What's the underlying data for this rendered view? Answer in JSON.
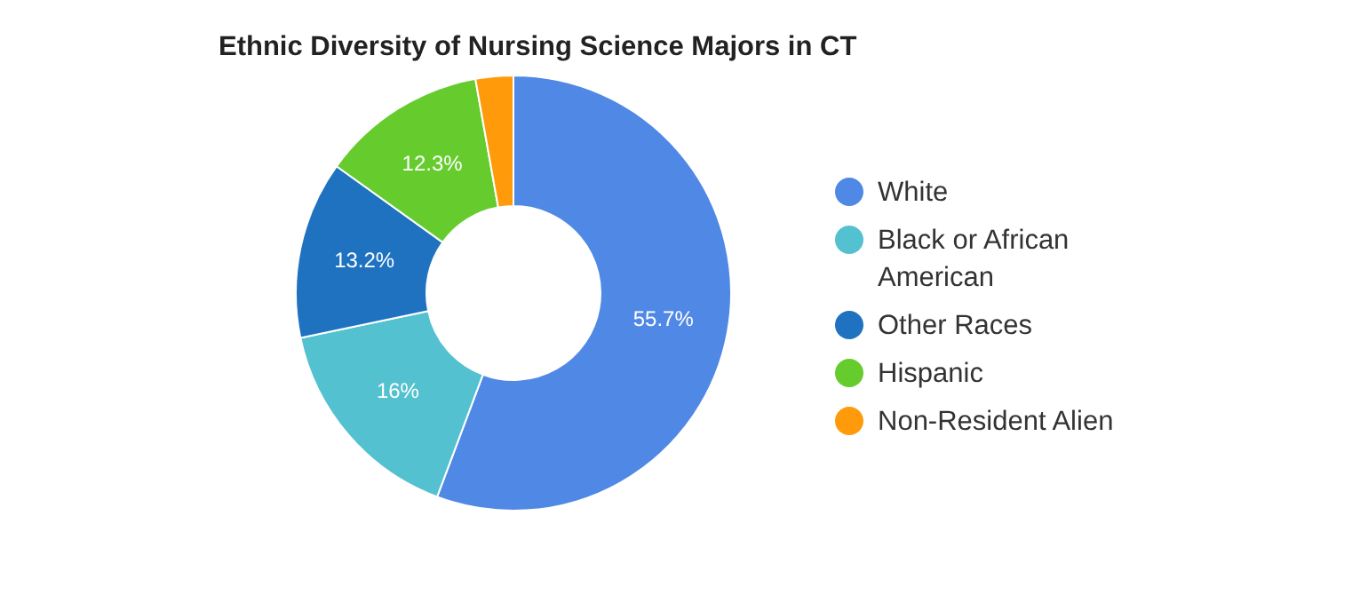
{
  "chart_data": {
    "type": "donut",
    "title": "Ethnic Diversity of Nursing Science Majors in CT",
    "categories": [
      "White",
      "Black or African American",
      "Other Races",
      "Hispanic",
      "Non-Resident Alien"
    ],
    "values": [
      55.7,
      16,
      13.2,
      12.3,
      2.8
    ],
    "colors": [
      "#5088e6",
      "#53c1cf",
      "#1f72c0",
      "#66cc2e",
      "#ff9a0a"
    ],
    "value_labels": [
      "55.7%",
      "16%",
      "13.2%",
      "12.3%",
      null
    ],
    "legend": "right"
  }
}
